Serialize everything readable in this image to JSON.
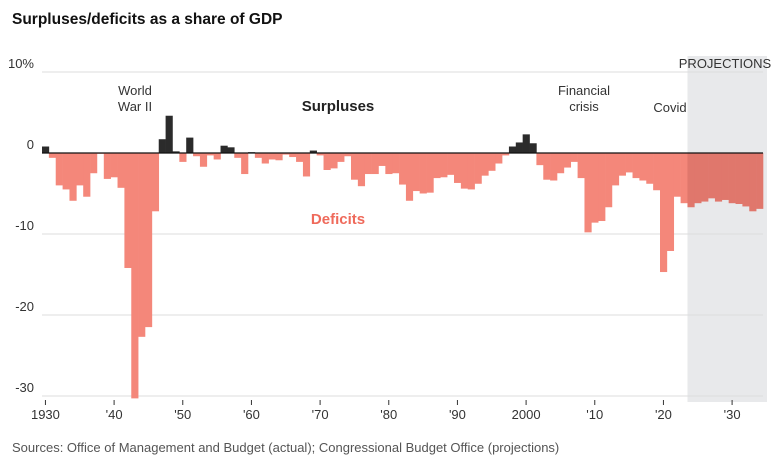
{
  "title": "Surpluses/deficits as a share of GDP",
  "source": "Sources: Office of Management and Budget (actual); Congressional Budget Office (projections)",
  "colors": {
    "surplus": "#2b2b2b",
    "deficit": "#f4877a",
    "deficit_projection": "#e0776c",
    "projection_band": "#e8e9eb",
    "grid": "#dddddd",
    "zero_line": "#111111"
  },
  "chart_data": {
    "type": "bar",
    "title": "Surpluses/deficits as a share of GDP",
    "xlabel": "",
    "ylabel": "",
    "ylim": [
      -30.5,
      10
    ],
    "xlim": [
      1929.5,
      2034.5
    ],
    "y_ticks": [
      {
        "value": 10,
        "label": "10%"
      },
      {
        "value": 0,
        "label": "0"
      },
      {
        "value": -10,
        "label": "-10"
      },
      {
        "value": -20,
        "label": "-20"
      },
      {
        "value": -30,
        "label": "-30"
      }
    ],
    "x_ticks": [
      {
        "value": 1930,
        "label": "1930"
      },
      {
        "value": 1940,
        "label": "'40"
      },
      {
        "value": 1950,
        "label": "'50"
      },
      {
        "value": 1960,
        "label": "'60"
      },
      {
        "value": 1970,
        "label": "'70"
      },
      {
        "value": 1980,
        "label": "'80"
      },
      {
        "value": 1990,
        "label": "'90"
      },
      {
        "value": 2000,
        "label": "2000"
      },
      {
        "value": 2010,
        "label": "'10"
      },
      {
        "value": 2020,
        "label": "'20"
      },
      {
        "value": 2030,
        "label": "'30"
      }
    ],
    "grid": true,
    "series_labels": {
      "surpluses": "Surpluses",
      "deficits": "Deficits"
    },
    "projection": {
      "start_year": 2024,
      "label": "PROJECTIONS"
    },
    "annotations": [
      {
        "year": 1943,
        "lines": [
          "World",
          "War II"
        ]
      },
      {
        "year": 2009,
        "lines": [
          "Financial",
          "crisis"
        ]
      },
      {
        "year": 2020,
        "lines": [
          "Covid"
        ]
      }
    ],
    "years": [
      1930,
      1931,
      1932,
      1933,
      1934,
      1935,
      1936,
      1937,
      1938,
      1939,
      1940,
      1941,
      1942,
      1943,
      1944,
      1945,
      1946,
      1947,
      1948,
      1949,
      1950,
      1951,
      1952,
      1953,
      1954,
      1955,
      1956,
      1957,
      1958,
      1959,
      1960,
      1961,
      1962,
      1963,
      1964,
      1965,
      1966,
      1967,
      1968,
      1969,
      1970,
      1971,
      1972,
      1973,
      1974,
      1975,
      1976,
      1977,
      1978,
      1979,
      1980,
      1981,
      1982,
      1983,
      1984,
      1985,
      1986,
      1987,
      1988,
      1989,
      1990,
      1991,
      1992,
      1993,
      1994,
      1995,
      1996,
      1997,
      1998,
      1999,
      2000,
      2001,
      2002,
      2003,
      2004,
      2005,
      2006,
      2007,
      2008,
      2009,
      2010,
      2011,
      2012,
      2013,
      2014,
      2015,
      2016,
      2017,
      2018,
      2019,
      2020,
      2021,
      2022,
      2023,
      2024,
      2025,
      2026,
      2027,
      2028,
      2029,
      2030,
      2031,
      2032,
      2033,
      2034
    ],
    "values": [
      0.8,
      -0.6,
      -4.0,
      -4.5,
      -5.9,
      -4.0,
      -5.4,
      -2.5,
      -0.1,
      -3.2,
      -3.0,
      -4.3,
      -14.2,
      -30.3,
      -22.7,
      -21.5,
      -7.2,
      1.7,
      4.6,
      0.2,
      -1.1,
      1.9,
      -0.4,
      -1.7,
      -0.3,
      -0.8,
      0.9,
      0.7,
      -0.6,
      -2.6,
      0.1,
      -0.6,
      -1.3,
      -0.8,
      -0.9,
      -0.2,
      -0.5,
      -1.1,
      -2.9,
      0.3,
      -0.3,
      -2.1,
      -1.9,
      -1.1,
      -0.4,
      -3.3,
      -4.1,
      -2.6,
      -2.6,
      -1.6,
      -2.6,
      -2.5,
      -3.9,
      -5.9,
      -4.7,
      -5.0,
      -4.9,
      -3.1,
      -3.0,
      -2.7,
      -3.7,
      -4.4,
      -4.5,
      -3.8,
      -2.8,
      -2.2,
      -1.3,
      -0.3,
      0.8,
      1.3,
      2.3,
      1.2,
      -1.5,
      -3.3,
      -3.4,
      -2.5,
      -1.8,
      -1.1,
      -3.1,
      -9.8,
      -8.6,
      -8.4,
      -6.7,
      -4.0,
      -2.8,
      -2.4,
      -3.1,
      -3.4,
      -3.8,
      -4.6,
      -14.7,
      -12.1,
      -5.4,
      -6.2,
      -6.7,
      -6.2,
      -6.0,
      -5.6,
      -6.0,
      -5.8,
      -6.2,
      -6.3,
      -6.6,
      -7.2,
      -6.9
    ]
  }
}
